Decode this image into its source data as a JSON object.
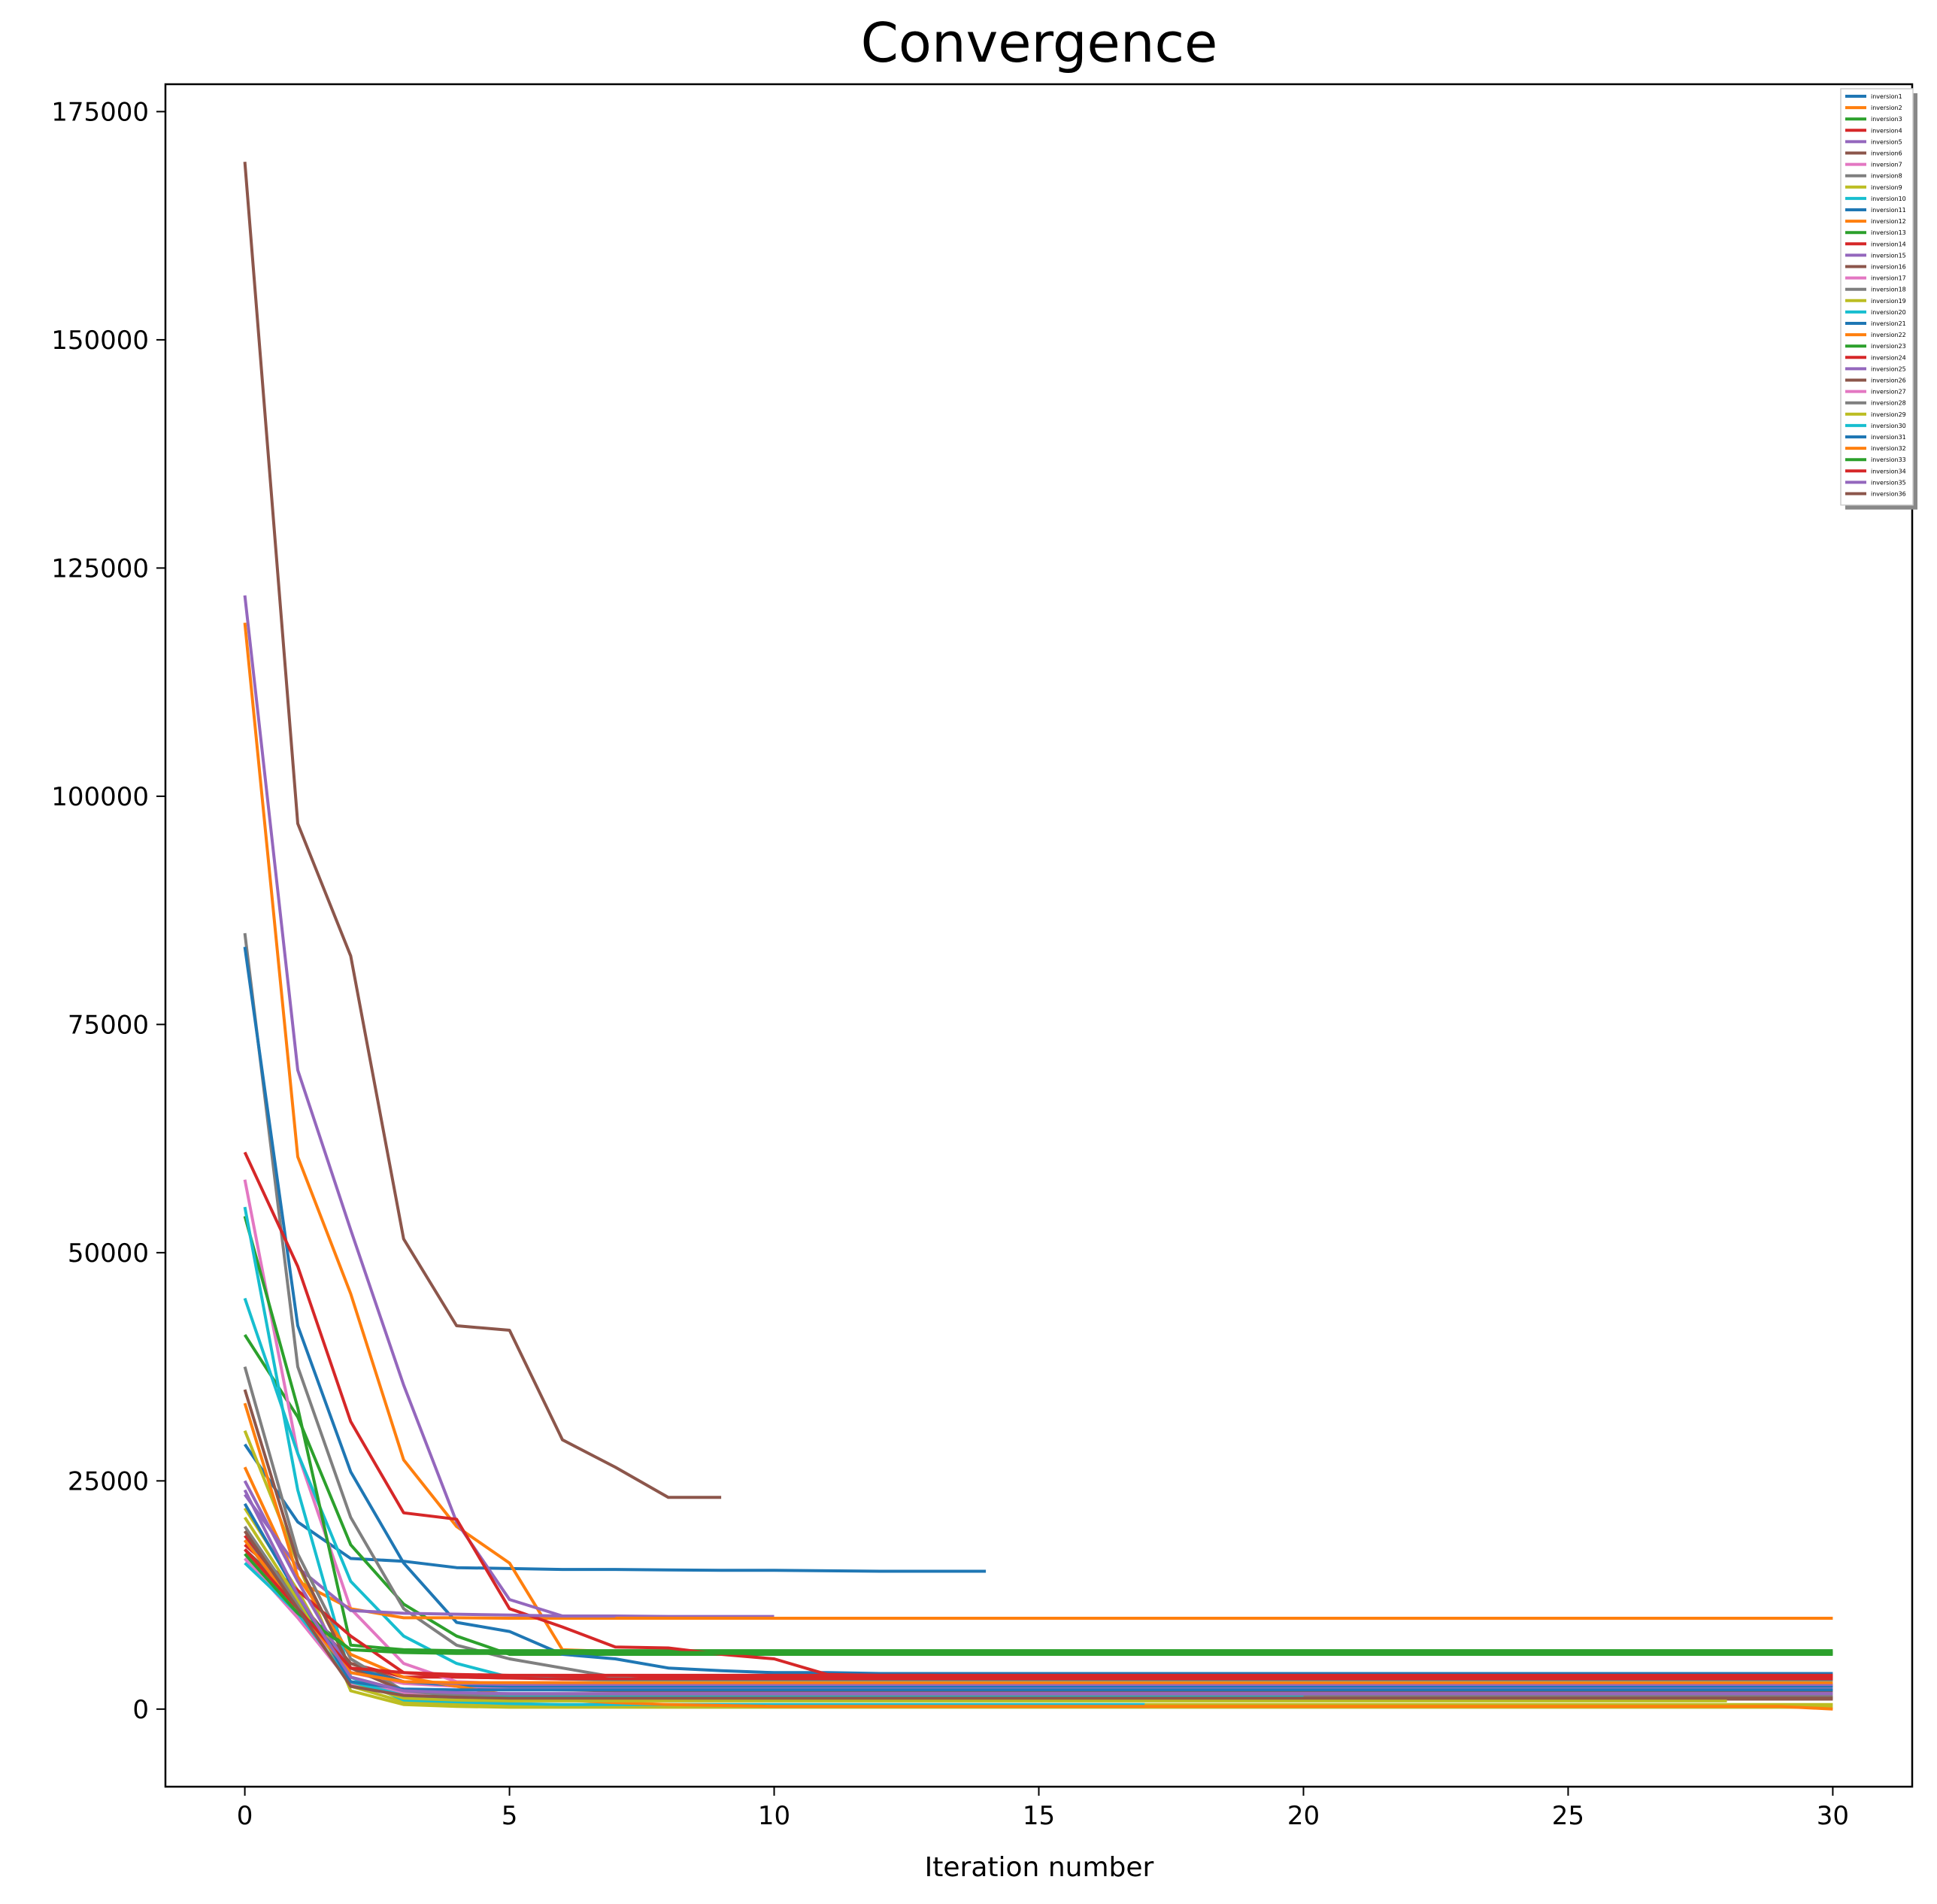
{
  "chart_data": {
    "type": "line",
    "title": "Convergence",
    "xlabel": "Iteration number",
    "ylabel": "",
    "xlim": [
      -1.5,
      31.5
    ],
    "ylim": [
      -8500,
      178000
    ],
    "xticks": [
      0,
      5,
      10,
      15,
      20,
      25,
      30
    ],
    "yticks": [
      0,
      25000,
      50000,
      75000,
      100000,
      125000,
      150000,
      175000
    ],
    "grid": false,
    "legend_position": "top-right",
    "colors": [
      "#1f77b4",
      "#ff7f0e",
      "#2ca02c",
      "#d62728",
      "#9467bd",
      "#8c564b",
      "#e377c2",
      "#7f7f7f",
      "#bcbd22",
      "#17becf"
    ],
    "series": [
      {
        "name": "inversion1",
        "values": [
          29000,
          20500,
          16500,
          16200,
          15500,
          15400,
          15300,
          15300,
          15250,
          15200,
          15200,
          15150,
          15100,
          15100,
          15100
        ]
      },
      {
        "name": "inversion2",
        "values": [
          119000,
          60500,
          45500,
          27300,
          20000,
          16000,
          6500,
          6300,
          6200,
          6200,
          6200
        ]
      },
      {
        "name": "inversion3",
        "values": [
          41000,
          32000,
          18000,
          11500,
          8000,
          6000,
          6000,
          6000,
          6000,
          6000,
          6000,
          6000,
          6000,
          6000,
          6000,
          6000,
          6000,
          6000,
          6000,
          6000,
          6000,
          6000,
          6000,
          6000,
          6000,
          6000,
          6000,
          6000,
          6000,
          6000,
          6000
        ]
      },
      {
        "name": "inversion4",
        "values": [
          19000,
          12000,
          5000,
          3500,
          3500,
          3400,
          3400,
          3400,
          3400,
          3400,
          3400,
          3400,
          3400,
          3400,
          3400,
          3400,
          3400,
          3400,
          3400,
          3400,
          3400,
          3400,
          3400,
          3400,
          3400,
          3400,
          3400,
          3400,
          3400,
          3400,
          3400
        ]
      },
      {
        "name": "inversion5",
        "values": [
          122000,
          70000,
          52500,
          35500,
          20500,
          12000,
          10200,
          10200,
          10150,
          10150,
          10150
        ]
      },
      {
        "name": "inversion6",
        "values": [
          17500,
          12000,
          5000,
          3000,
          2500,
          2200,
          2100,
          2000,
          2000,
          2000,
          2000,
          2000,
          2000,
          2000,
          2000,
          2000,
          2000,
          2000,
          2000,
          2000,
          2000,
          2000,
          2000,
          2000,
          2000,
          2000,
          2000,
          2000,
          2000,
          2000,
          2000
        ]
      },
      {
        "name": "inversion7",
        "values": [
          58000,
          28000,
          11000,
          5000,
          3000,
          2800,
          2700,
          2600,
          2600,
          2600,
          2600,
          2600,
          2600,
          2600,
          2600,
          2600,
          2600,
          2600,
          2600,
          2600,
          2600,
          2600,
          2600,
          2600,
          2600,
          2600,
          2600,
          2600,
          2600,
          2600,
          2600
        ]
      },
      {
        "name": "inversion8",
        "values": [
          85000,
          37500,
          21000,
          11000,
          7000,
          5500,
          4500,
          3500,
          3000,
          2800,
          2700,
          2600,
          2600,
          2600,
          2600,
          2600,
          2600,
          2600,
          2600,
          2600,
          2600,
          2600,
          2600,
          2600,
          2600,
          2600,
          2600,
          2600,
          2600,
          2600,
          2600
        ]
      },
      {
        "name": "inversion9",
        "values": [
          30500,
          16000,
          2000,
          500,
          300,
          200,
          200,
          200,
          200,
          200,
          200,
          200,
          200,
          200,
          200,
          200,
          200,
          200,
          200,
          200,
          200,
          200,
          200,
          200,
          200,
          200,
          200,
          200,
          200,
          200,
          200
        ]
      },
      {
        "name": "inversion10",
        "values": [
          45000,
          28000,
          14000,
          8000,
          5000,
          3500,
          3300,
          3200,
          3200,
          3200,
          3200,
          3200,
          3200,
          3200,
          3200,
          3200,
          3200,
          3200,
          3200,
          3200,
          3200,
          3200,
          3200,
          3200,
          3200,
          3200,
          3200,
          3200,
          3200,
          3200,
          3200
        ]
      },
      {
        "name": "inversion11",
        "values": [
          83500,
          42000,
          26000,
          16000,
          9500,
          8500,
          6000,
          5500,
          4500,
          4200,
          4000,
          4000,
          3900,
          3900,
          3900,
          3900,
          3900,
          3900,
          3900,
          3900,
          3900,
          3900,
          3900,
          3900,
          3900,
          3900,
          3900,
          3900,
          3900,
          3900,
          3900
        ]
      },
      {
        "name": "inversion12",
        "values": [
          26500,
          14000,
          11000,
          10000,
          10000,
          9950,
          9950,
          9950,
          9950,
          9950,
          9950,
          9950,
          9950,
          9950,
          9950,
          9950,
          9950,
          9950,
          9950,
          9950,
          9950,
          9950,
          9950,
          9950,
          9950,
          9950,
          9950,
          9950,
          9950,
          9950,
          9950
        ]
      },
      {
        "name": "inversion13",
        "values": [
          54000,
          33000,
          7000,
          6500,
          6400,
          6400,
          6400,
          6400,
          6400,
          6400,
          6400,
          6400,
          6400,
          6400,
          6400,
          6400,
          6400,
          6400,
          6400,
          6400,
          6400,
          6400,
          6400,
          6400,
          6400,
          6400,
          6400,
          6400,
          6400,
          6400,
          6400
        ]
      },
      {
        "name": "inversion14",
        "values": [
          61000,
          48500,
          31500,
          21500,
          20800,
          11000,
          9000,
          6800,
          6700,
          6000,
          5500,
          3800,
          3700,
          3700,
          3600,
          3600,
          3600,
          3600,
          3600,
          3600,
          3600,
          3600,
          3600,
          3600,
          3600,
          3600,
          3600,
          3600,
          3600,
          3600,
          3600
        ]
      },
      {
        "name": "inversion15",
        "values": [
          23500,
          15500,
          10800,
          10500,
          10400,
          10300,
          10200,
          10200
        ]
      },
      {
        "name": "inversion16",
        "values": [
          169500,
          97000,
          82500,
          51500,
          42000,
          41500,
          29500,
          26500,
          23200,
          23200
        ]
      },
      {
        "name": "inversion17",
        "values": [
          16500,
          10500,
          4000,
          2800,
          2500,
          2400,
          2300,
          2300,
          2300,
          2300,
          2300,
          2300,
          2300,
          2300,
          2300,
          2300,
          2300,
          2300,
          2300,
          2300,
          2300,
          2300,
          2300,
          2300,
          2300,
          2300,
          2300,
          2300,
          2300,
          2300,
          2300
        ]
      },
      {
        "name": "inversion18",
        "values": [
          37500,
          17000,
          5500,
          2000,
          1500,
          1400,
          1300,
          1300,
          1300,
          1300,
          1300,
          1300,
          1300,
          1300,
          1300,
          1300,
          1300,
          1300,
          1300,
          1300,
          1300,
          1300,
          1300,
          1300,
          1300,
          1300,
          1300,
          1300,
          1300,
          1300,
          1300
        ]
      },
      {
        "name": "inversion19",
        "values": [
          22000,
          13000,
          2500,
          800,
          600,
          500,
          500,
          500,
          500,
          500,
          500,
          500,
          500,
          500,
          500,
          500,
          500,
          500,
          500,
          500,
          500,
          500,
          500,
          500,
          500,
          500,
          500,
          500,
          500,
          500,
          500
        ]
      },
      {
        "name": "inversion20",
        "values": [
          55000,
          24000,
          3500,
          1000,
          800,
          600,
          500,
          500,
          500,
          500,
          500,
          500,
          500,
          500,
          500,
          500,
          500,
          500
        ]
      },
      {
        "name": "inversion21",
        "values": [
          18500,
          11500,
          4500,
          3000,
          2600,
          2500,
          2500,
          2500,
          2500,
          2500,
          2500,
          2500,
          2500,
          2500,
          2500,
          2500,
          2500,
          2500,
          2500,
          2500,
          2500,
          2500,
          2500,
          2500,
          2500,
          2500,
          2500,
          2500,
          2500,
          2500,
          2500
        ]
      },
      {
        "name": "inversion22",
        "values": [
          33500,
          14500,
          6000,
          3500,
          2500,
          1500,
          1000,
          700,
          500,
          400,
          300,
          300,
          300,
          300,
          300,
          300,
          300,
          300,
          300,
          300,
          300,
          300,
          300,
          300,
          300,
          300,
          300,
          300,
          300,
          300,
          0
        ]
      },
      {
        "name": "inversion23",
        "values": [
          17500,
          11000,
          6500,
          6200,
          6100,
          6100,
          6100,
          6100,
          6100,
          6100,
          6100,
          6100,
          6100,
          6100,
          6100,
          6100,
          6100,
          6100,
          6100,
          6100,
          6100,
          6100,
          6100,
          6100,
          6100,
          6100,
          6100,
          6100,
          6100,
          6100,
          6100
        ]
      },
      {
        "name": "inversion24",
        "values": [
          18000,
          13000,
          8000,
          4000,
          3500,
          3400,
          3300,
          3300,
          3300,
          3300,
          3300,
          3300,
          3300,
          3300,
          3300,
          3300,
          3300,
          3300,
          3300,
          3300,
          3300,
          3300,
          3300,
          3300,
          3300,
          3300,
          3300,
          3300,
          3300,
          3300,
          3300
        ]
      },
      {
        "name": "inversion25",
        "values": [
          25000,
          14000,
          4000,
          3000,
          2800,
          2700,
          2700,
          2700,
          2700,
          2700,
          2700,
          2700,
          2700,
          2700,
          2700,
          2700,
          2700,
          2700,
          2700,
          2700,
          2700,
          2700,
          2700,
          2700,
          2700,
          2700,
          2700,
          2700,
          2700,
          2700,
          2700
        ]
      },
      {
        "name": "inversion26",
        "values": [
          35000,
          16000,
          4500,
          2000,
          1500,
          1200,
          1100,
          1100,
          1100,
          1100,
          1100,
          1100,
          1100,
          1100,
          1100,
          1100,
          1100,
          1100,
          1100,
          1100,
          1100,
          1100,
          1100,
          1100,
          1100,
          1100,
          1100,
          1100,
          1100,
          1100,
          1100
        ]
      },
      {
        "name": "inversion27",
        "values": [
          16500,
          10000,
          2800,
          1800,
          1700,
          1700,
          1700,
          1700,
          1700,
          1700,
          1700,
          1700,
          1700,
          1700,
          1700,
          1700,
          1700,
          1700,
          1700,
          1700,
          1700,
          1700,
          1700,
          1700,
          1700,
          1700,
          1700,
          1700,
          1700,
          1700,
          1700
        ]
      },
      {
        "name": "inversion28",
        "values": [
          20000,
          11500,
          3500,
          2000,
          1500,
          1400,
          1400,
          1400,
          1400,
          1400,
          1400,
          1400,
          1400,
          1400,
          1400,
          1400,
          1400,
          1400,
          1400,
          1400,
          1400,
          1400,
          1400,
          1400,
          1400,
          1400,
          1400,
          1400,
          1400,
          1400,
          1400
        ]
      },
      {
        "name": "inversion29",
        "values": [
          21000,
          12000,
          3000,
          1200,
          1000,
          900,
          900,
          900,
          900,
          900,
          900,
          900,
          900,
          900,
          900,
          900,
          900,
          900,
          900,
          900,
          900,
          900,
          900,
          900,
          900,
          900,
          900,
          900,
          900
        ]
      },
      {
        "name": "inversion30",
        "values": [
          16000,
          10500,
          3000,
          1500,
          1300,
          1300,
          1300,
          1300,
          1300,
          1300,
          1300,
          1300,
          1300,
          1300,
          1300,
          1300,
          1300,
          1300,
          1300,
          1300,
          1300
        ]
      },
      {
        "name": "inversion31",
        "values": [
          22500,
          12500,
          3000,
          2200,
          2100,
          2100,
          2100,
          2100,
          2100,
          2100,
          2100,
          2100,
          2100,
          2100,
          2100,
          2100,
          2100,
          2100,
          2100,
          2100,
          2100,
          2100,
          2100,
          2100,
          2100,
          2100,
          2100,
          2100,
          2100,
          2100,
          2100
        ]
      },
      {
        "name": "inversion32",
        "values": [
          18500,
          11000,
          4000,
          3000,
          2900,
          2900,
          2900,
          2900,
          2900,
          2900,
          2900,
          2900,
          2900,
          2900,
          2900,
          2900,
          2900,
          2900,
          2900,
          2900,
          2900,
          2900,
          2900,
          2900,
          2900,
          2900,
          2900,
          2900,
          2900,
          2900,
          2900
        ]
      },
      {
        "name": "inversion33",
        "values": [
          17000,
          10500,
          6500,
          6300,
          6200,
          6200,
          6200,
          6200,
          6200,
          6200,
          6200,
          6200,
          6200,
          6200,
          6200,
          6200,
          6200,
          6200,
          6200,
          6200,
          6200,
          6200,
          6200,
          6200,
          6200,
          6200,
          6200,
          6200,
          6200,
          6200,
          6200
        ]
      },
      {
        "name": "inversion34",
        "values": [
          17500,
          11000,
          4500,
          4000,
          3800,
          3700,
          3700,
          3700,
          3700,
          3700,
          3700,
          3700,
          3700,
          3700,
          3700,
          3700,
          3700,
          3700,
          3700,
          3700,
          3700,
          3700,
          3700,
          3700,
          3700,
          3700,
          3700,
          3700,
          3700,
          3700,
          3700
        ]
      },
      {
        "name": "inversion35",
        "values": [
          24000,
          12500,
          3500,
          2000,
          1800,
          1700,
          1700,
          1700,
          1700,
          1700,
          1700,
          1700,
          1700,
          1700,
          1700,
          1700,
          1700,
          1700,
          1700,
          1700,
          1700,
          1700,
          1700,
          1700,
          1700,
          1700,
          1700,
          1700,
          1700,
          1700,
          1700
        ]
      },
      {
        "name": "inversion36",
        "values": [
          19500,
          11000,
          2500,
          1500,
          1300,
          1200,
          1200,
          1200,
          1200,
          1200,
          1200,
          1200,
          1200,
          1200,
          1200,
          1200,
          1200,
          1200,
          1200,
          1200,
          1200,
          1200,
          1200,
          1200,
          1200,
          1200,
          1200,
          1200,
          1200,
          1200,
          1200
        ]
      }
    ]
  }
}
